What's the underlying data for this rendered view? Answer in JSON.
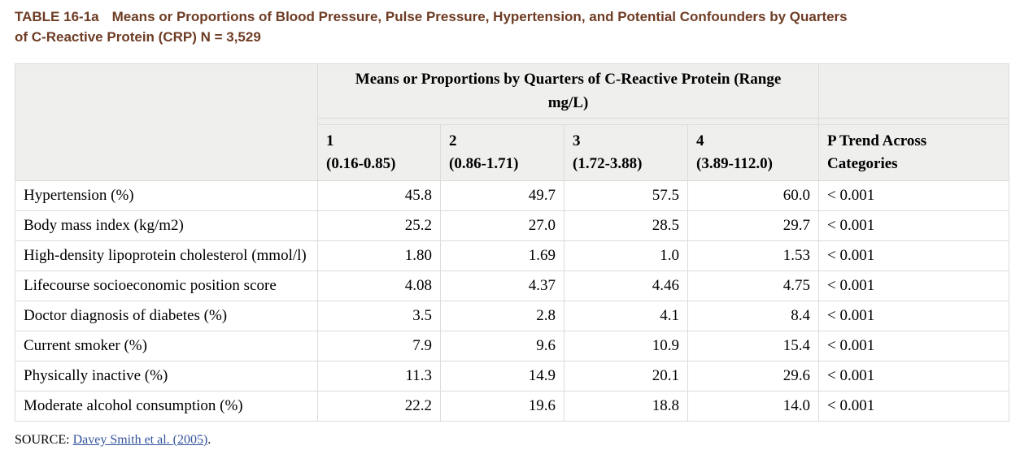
{
  "page": {
    "title_label": "TABLE 16-1a",
    "title_line1": "Means or Proportions of Blood Pressure, Pulse Pressure, Hypertension, and Potential Confounders by Quarters",
    "title_line2": "of C-Reactive Protein (CRP) N = 3,529",
    "source_label": "SOURCE",
    "source_separator": ": ",
    "source_link": "Davey Smith et al. (2005)",
    "source_suffix": "."
  },
  "colors": {
    "title_brown": "#6e3c24",
    "link_blue": "#35549c",
    "header_bg": "#efefee",
    "border_gray": "#dcdbd8"
  },
  "table": {
    "span_header_line1": "Means or Proportions by Quarters of C-Reactive Protein (Range",
    "span_header_line2": "mg/L)",
    "columns": [
      {
        "num": "1",
        "range": "(0.16-0.85)"
      },
      {
        "num": "2",
        "range": "(0.86-1.71)"
      },
      {
        "num": "3",
        "range": "(1.72-3.88)"
      },
      {
        "num": "4",
        "range": "(3.89-112.0)"
      }
    ],
    "p_header_line1": "P Trend Across",
    "p_header_line2": "Categories",
    "rows": [
      {
        "label": "Hypertension (%)",
        "values": [
          "45.8",
          "49.7",
          "57.5",
          "60.0"
        ],
        "p": "< 0.001"
      },
      {
        "label": "Body mass index (kg/m2)",
        "values": [
          "25.2",
          "27.0",
          "28.5",
          "29.7"
        ],
        "p": "< 0.001"
      },
      {
        "label": "High-density lipoprotein cholesterol (mmol/l)",
        "values": [
          "1.80",
          "1.69",
          "1.0",
          "1.53"
        ],
        "p": "< 0.001"
      },
      {
        "label": "Lifecourse socioeconomic position score",
        "values": [
          "4.08",
          "4.37",
          "4.46",
          "4.75"
        ],
        "p": "< 0.001"
      },
      {
        "label": "Doctor diagnosis of diabetes (%)",
        "values": [
          "3.5",
          "2.8",
          "4.1",
          "8.4"
        ],
        "p": "< 0.001"
      },
      {
        "label": "Current smoker (%)",
        "values": [
          "7.9",
          "9.6",
          "10.9",
          "15.4"
        ],
        "p": "< 0.001"
      },
      {
        "label": "Physically inactive (%)",
        "values": [
          "11.3",
          "14.9",
          "20.1",
          "29.6"
        ],
        "p": "< 0.001"
      },
      {
        "label": "Moderate alcohol consumption (%)",
        "values": [
          "22.2",
          "19.6",
          "18.8",
          "14.0"
        ],
        "p": "< 0.001"
      }
    ]
  }
}
